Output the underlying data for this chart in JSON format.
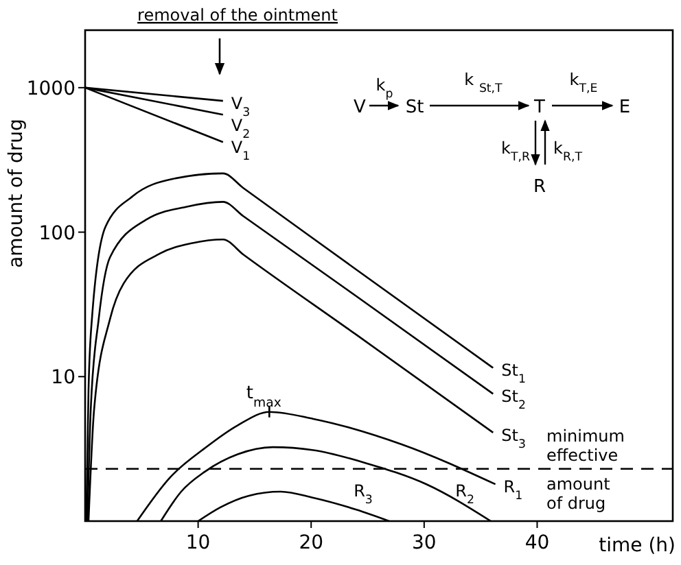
{
  "chart_data": {
    "type": "line",
    "xlabel": "time (h)",
    "ylabel": "amount of drug",
    "log": "y",
    "xlim": [
      0,
      52
    ],
    "ylim": [
      1,
      2500
    ],
    "xticks": [
      10,
      20,
      30,
      40
    ],
    "yticks": [
      10,
      100,
      1000
    ],
    "grid": false,
    "marker": "none",
    "line_style": "solid",
    "series": [
      {
        "name": "V$_{3}$",
        "color": "#000000",
        "x": [
          0,
          12.2
        ],
        "values": [
          1000,
          810
        ]
      },
      {
        "name": "V$_{2}$",
        "color": "#000000",
        "x": [
          0,
          12.2
        ],
        "values": [
          1000,
          650
        ]
      },
      {
        "name": "V$_{1}$",
        "color": "#000000",
        "x": [
          0,
          12.2
        ],
        "values": [
          1000,
          420
        ]
      },
      {
        "name": "St$_{1}$",
        "color": "#000000",
        "x": [
          0.1,
          0.3,
          0.6,
          1.8,
          4.2,
          7.8,
          12.2,
          14,
          24,
          36.1
        ],
        "values": [
          1,
          8,
          25,
          109,
          177,
          234,
          255,
          202,
          55,
          11.5
        ]
      },
      {
        "name": "St$_{2}$",
        "color": "#000000",
        "x": [
          0.2,
          0.5,
          1.2,
          2.2,
          5.4,
          9,
          12.2,
          14,
          24,
          36.1
        ],
        "values": [
          1,
          6,
          25,
          67,
          122,
          150,
          162,
          129,
          36,
          7.6
        ]
      },
      {
        "name": "St$_{3}$",
        "color": "#000000",
        "x": [
          0.3,
          0.8,
          2.2,
          3.4,
          6.6,
          9.5,
          12.2,
          14,
          24,
          36.1
        ],
        "values": [
          1,
          6,
          25,
          44,
          71,
          84,
          89,
          70,
          19.5,
          4.1
        ]
      },
      {
        "name": "R$_{1}$",
        "color": "#000000",
        "x": [
          4.6,
          7.5,
          10.6,
          13.5,
          16.3,
          20.2,
          28,
          36.3
        ],
        "values": [
          1,
          2,
          3.2,
          4.6,
          5.7,
          5.1,
          3.4,
          1.8
        ]
      },
      {
        "name": "R$_{2}$",
        "color": "#000000",
        "x": [
          6.7,
          8.5,
          10.6,
          13.5,
          16.6,
          20.2,
          25,
          30.2,
          35.9
        ],
        "values": [
          1,
          1.6,
          2.2,
          2.9,
          3.25,
          3.1,
          2.5,
          1.8,
          1
        ]
      },
      {
        "name": "R$_{3}$",
        "color": "#000000",
        "x": [
          10,
          12,
          14.5,
          17.3,
          20.2,
          24,
          26.9
        ],
        "values": [
          1,
          1.25,
          1.5,
          1.6,
          1.45,
          1.2,
          1
        ]
      }
    ],
    "ref_lines": [
      {
        "axis": "y",
        "value": 2.3,
        "label": "minimum effective amount of drug",
        "color": "#000000",
        "line_style": "dashed"
      }
    ],
    "annotations": [
      "removal of the ointment",
      {
        "text": "t$_{max}$",
        "x": 16.3,
        "y": 5.7
      },
      "V",
      "St",
      "T",
      "E",
      "R",
      "k$_{p}$",
      "k $_{St,T}$",
      "k$_{T,E}$",
      "k$_{T,R}$",
      "k$_{R,T}$"
    ]
  }
}
